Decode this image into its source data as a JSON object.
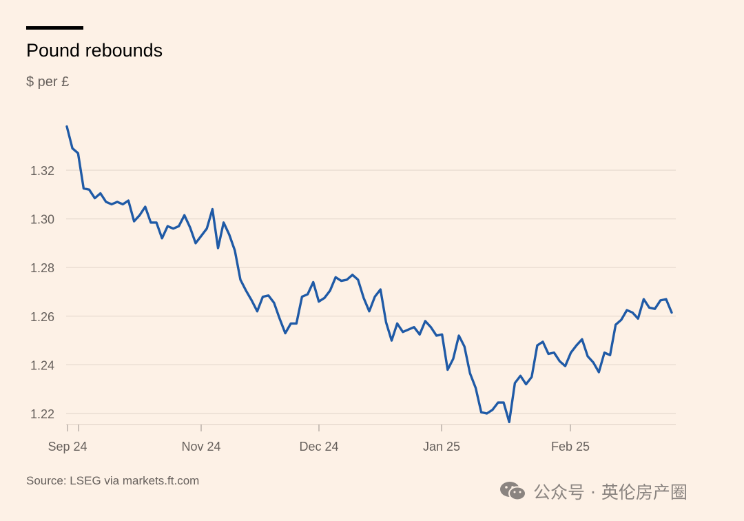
{
  "title": "Pound rebounds",
  "subtitle": "$ per £",
  "source": "Source: LSEG via markets.ft.com",
  "watermark": "公众号 · 英伦房产圈",
  "colors": {
    "background": "#fdf1e6",
    "line": "#1f5aa6",
    "grid": "#e6d9ce",
    "text": "#66605c"
  },
  "chart_data": {
    "type": "line",
    "title": "Pound rebounds",
    "ylabel": "$ per £",
    "xlabel": "",
    "x_ticks": [
      "Sep 24",
      "Nov 24",
      "Dec 24",
      "Jan 25",
      "Feb 25"
    ],
    "y_ticks": [
      "1.22",
      "1.24",
      "1.26",
      "1.28",
      "1.30",
      "1.32"
    ],
    "ylim": [
      1.213,
      1.342
    ],
    "grid": "horizontal",
    "series": [
      {
        "values": [
          1.338,
          1.329,
          1.327,
          1.3125,
          1.312,
          1.3085,
          1.3105,
          1.307,
          1.306,
          1.307,
          1.306,
          1.3075,
          1.299,
          1.3015,
          1.305,
          1.2985,
          1.2985,
          1.292,
          1.297,
          1.296,
          1.297,
          1.3015,
          1.2965,
          1.29,
          1.293,
          1.296,
          1.304,
          1.288,
          1.2985,
          1.2935,
          1.287,
          1.275,
          1.2705,
          1.2665,
          1.262,
          1.268,
          1.2685,
          1.2655,
          1.259,
          1.253,
          1.257,
          1.257,
          1.268,
          1.269,
          1.274,
          1.266,
          1.2675,
          1.2705,
          1.276,
          1.2745,
          1.275,
          1.277,
          1.275,
          1.2675,
          1.262,
          1.268,
          1.271,
          1.2575,
          1.25,
          1.257,
          1.2535,
          1.2545,
          1.2555,
          1.2525,
          1.258,
          1.2555,
          1.252,
          1.2525,
          1.238,
          1.2425,
          1.252,
          1.2475,
          1.2365,
          1.2305,
          1.2205,
          1.22,
          1.2215,
          1.2245,
          1.2245,
          1.2165,
          1.2325,
          1.2355,
          1.232,
          1.235,
          1.248,
          1.2495,
          1.2445,
          1.245,
          1.2415,
          1.2395,
          1.245,
          1.248,
          1.2505,
          1.2435,
          1.241,
          1.237,
          1.245,
          1.244,
          1.2565,
          1.2585,
          1.2625,
          1.2615,
          1.259,
          1.267,
          1.2635,
          1.263,
          1.2665,
          1.267,
          1.2615
        ]
      }
    ]
  }
}
